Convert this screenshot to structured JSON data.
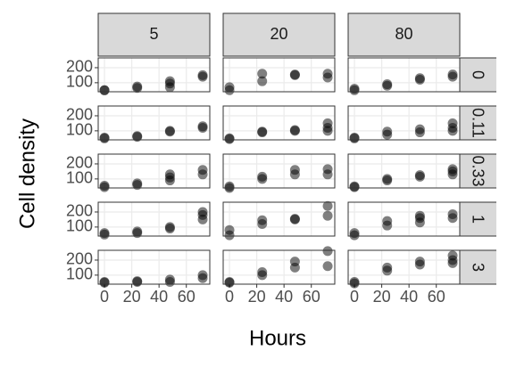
{
  "chart_data": {
    "type": "scatter",
    "xlabel": "Hours",
    "ylabel": "Cell density",
    "facet_cols": [
      "5",
      "20",
      "80"
    ],
    "facet_rows": [
      "0",
      "0.11",
      "0.33",
      "1",
      "3"
    ],
    "xlim": [
      -4.6,
      77.2
    ],
    "ylim": [
      40,
      265
    ],
    "xticks": [
      0,
      20,
      40,
      60
    ],
    "yticks": [
      100,
      200
    ],
    "color": "#000000",
    "grid": true,
    "panels": [
      {
        "x": [
          0,
          0,
          24,
          24,
          48,
          48,
          48,
          72,
          72
        ],
        "y": [
          50,
          50,
          65,
          75,
          70,
          95,
          110,
          150,
          140
        ]
      },
      {
        "x": [
          0,
          0,
          24,
          24,
          48,
          48,
          72,
          72
        ],
        "y": [
          50,
          70,
          110,
          160,
          150,
          155,
          135,
          160
        ]
      },
      {
        "x": [
          0,
          0,
          24,
          24,
          48,
          48,
          72,
          72
        ],
        "y": [
          50,
          60,
          80,
          90,
          120,
          130,
          140,
          155
        ]
      },
      {
        "x": [
          0,
          0,
          24,
          24,
          48,
          48,
          72,
          72
        ],
        "y": [
          50,
          55,
          60,
          65,
          95,
          100,
          120,
          130
        ]
      },
      {
        "x": [
          0,
          0,
          24,
          24,
          48,
          48,
          72,
          72,
          72
        ],
        "y": [
          50,
          45,
          90,
          95,
          100,
          105,
          120,
          150,
          100
        ]
      },
      {
        "x": [
          0,
          0,
          24,
          24,
          48,
          48,
          72,
          72,
          72
        ],
        "y": [
          50,
          55,
          75,
          95,
          90,
          110,
          100,
          120,
          150
        ]
      },
      {
        "x": [
          0,
          0,
          24,
          24,
          48,
          48,
          48,
          72,
          72
        ],
        "y": [
          45,
          55,
          60,
          70,
          90,
          110,
          130,
          130,
          160
        ]
      },
      {
        "x": [
          0,
          0,
          24,
          24,
          48,
          48,
          72,
          72
        ],
        "y": [
          40,
          50,
          100,
          115,
          130,
          160,
          130,
          165
        ]
      },
      {
        "x": [
          0,
          0,
          24,
          24,
          48,
          48,
          72,
          72,
          72
        ],
        "y": [
          45,
          50,
          90,
          100,
          115,
          125,
          130,
          150,
          165
        ]
      },
      {
        "x": [
          0,
          0,
          24,
          24,
          48,
          48,
          72,
          72,
          72
        ],
        "y": [
          50,
          60,
          60,
          70,
          90,
          100,
          150,
          180,
          200
        ]
      },
      {
        "x": [
          0,
          0,
          24,
          24,
          48,
          48,
          72,
          72
        ],
        "y": [
          45,
          80,
          120,
          145,
          150,
          155,
          175,
          240
        ]
      },
      {
        "x": [
          0,
          0,
          24,
          24,
          48,
          48,
          48,
          72,
          72
        ],
        "y": [
          45,
          60,
          110,
          140,
          130,
          160,
          175,
          160,
          185
        ]
      },
      {
        "x": [
          0,
          0,
          24,
          24,
          48,
          48,
          72,
          72
        ],
        "y": [
          50,
          55,
          55,
          60,
          55,
          70,
          80,
          100
        ]
      },
      {
        "x": [
          0,
          0,
          24,
          24,
          48,
          48,
          72,
          72
        ],
        "y": [
          50,
          55,
          100,
          120,
          150,
          190,
          160,
          260
        ]
      },
      {
        "x": [
          0,
          0,
          24,
          24,
          48,
          48,
          72,
          72,
          72
        ],
        "y": [
          45,
          55,
          130,
          150,
          170,
          190,
          180,
          200,
          230
        ]
      }
    ]
  }
}
